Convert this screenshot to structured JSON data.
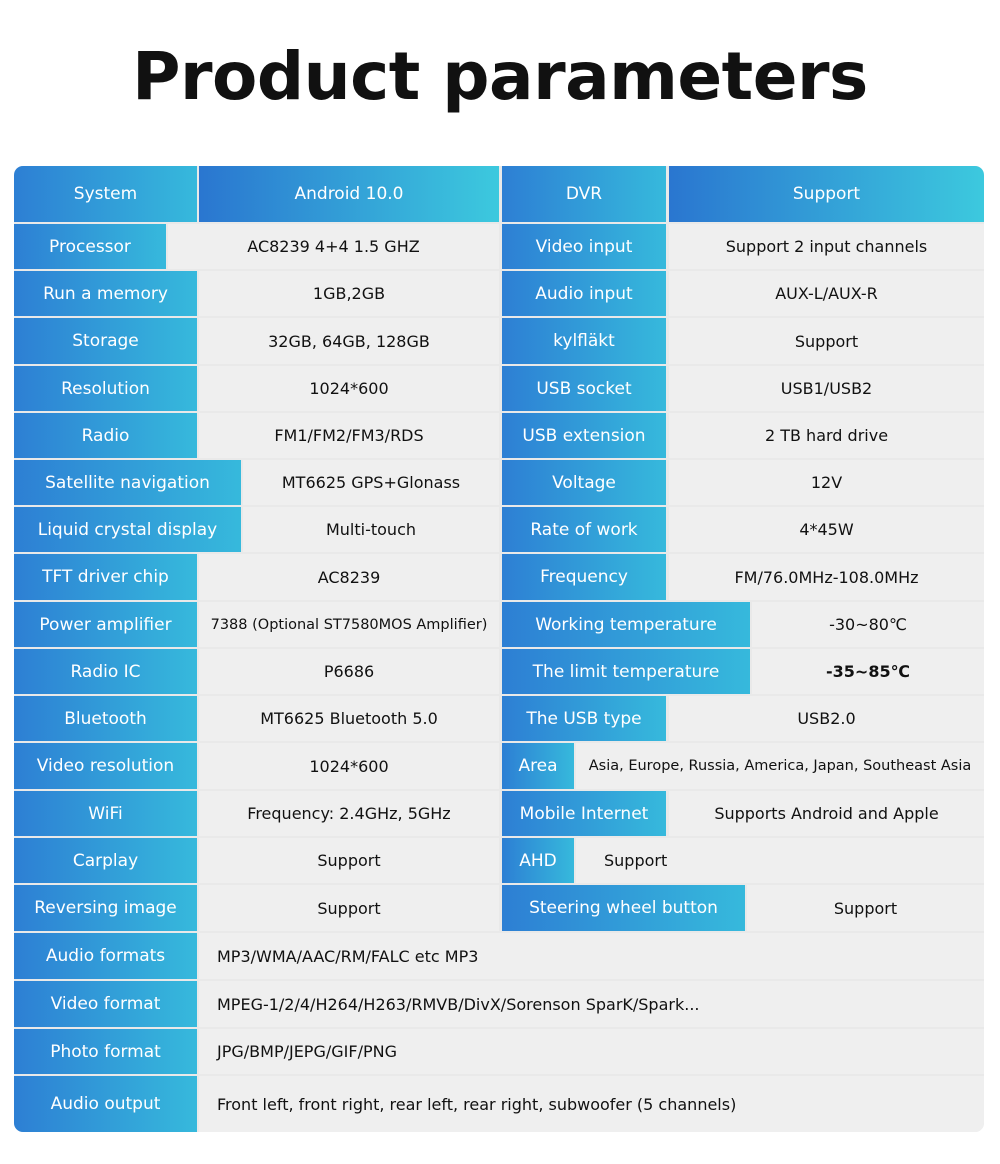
{
  "title": "Product parameters",
  "header": {
    "left_label": "System",
    "left_value": "Android 10.0",
    "right_label": "DVR",
    "right_value": "Support"
  },
  "left_rows": [
    {
      "label": "Processor",
      "value": "AC8239  4+4  1.5 GHZ"
    },
    {
      "label": "Run a memory",
      "value": "1GB,2GB"
    },
    {
      "label": "Storage",
      "value": "32GB, 64GB, 128GB"
    },
    {
      "label": "Resolution",
      "value": "1024*600"
    },
    {
      "label": "Radio",
      "value": "FM1/FM2/FM3/RDS"
    },
    {
      "label": "Satellite navigation",
      "value": "MT6625 GPS+Glonass"
    },
    {
      "label": "Liquid crystal display",
      "value": "Multi-touch"
    },
    {
      "label": "TFT driver chip",
      "value": "AC8239"
    },
    {
      "label": "Power amplifier",
      "value": "7388 (Optional ST7580MOS Amplifier)"
    },
    {
      "label": "Radio IC",
      "value": "P6686"
    },
    {
      "label": "Bluetooth",
      "value": "MT6625 Bluetooth 5.0"
    },
    {
      "label": "Video resolution",
      "value": "1024*600"
    },
    {
      "label": "WiFi",
      "value": "Frequency: 2.4GHz, 5GHz"
    },
    {
      "label": "Carplay",
      "value": "Support"
    },
    {
      "label": "Reversing image",
      "value": "Support"
    }
  ],
  "right_rows": [
    {
      "label": "Video input",
      "value": "Support 2 input channels"
    },
    {
      "label": "Audio input",
      "value": "AUX-L/AUX-R"
    },
    {
      "label": "kylfläkt",
      "value": "Support"
    },
    {
      "label": "USB socket",
      "value": "USB1/USB2"
    },
    {
      "label": "USB extension",
      "value": "2 TB hard drive"
    },
    {
      "label": "Voltage",
      "value": "12V"
    },
    {
      "label": "Rate of work",
      "value": "4*45W"
    },
    {
      "label": "Frequency",
      "value": "FM/76.0MHz-108.0MHz"
    },
    {
      "label": "Working temperature",
      "value": "-30~80℃"
    },
    {
      "label": "The limit temperature",
      "value": "-35~85℃"
    },
    {
      "label": "The USB type",
      "value": "USB2.0"
    },
    {
      "label": "Area",
      "value": "Asia, Europe, Russia, America, Japan, Southeast Asia"
    },
    {
      "label": "Mobile Internet",
      "value": "Supports Android and Apple"
    },
    {
      "label": "AHD",
      "value": "Support"
    },
    {
      "label": "Steering wheel button",
      "value": "Support"
    }
  ],
  "full_rows": [
    {
      "label": "Audio formats",
      "value": "MP3/WMA/AAC/RM/FALC etc MP3"
    },
    {
      "label": "Video format",
      "value": "MPEG-1/2/4/H264/H263/RMVB/DivX/Sorenson SparK/Spark..."
    },
    {
      "label": "Photo format",
      "value": "JPG/BMP/JEPG/GIF/PNG"
    },
    {
      "label": "Audio output",
      "value": "Front left, front right, rear left, rear right, subwoofer (5 channels)"
    }
  ]
}
